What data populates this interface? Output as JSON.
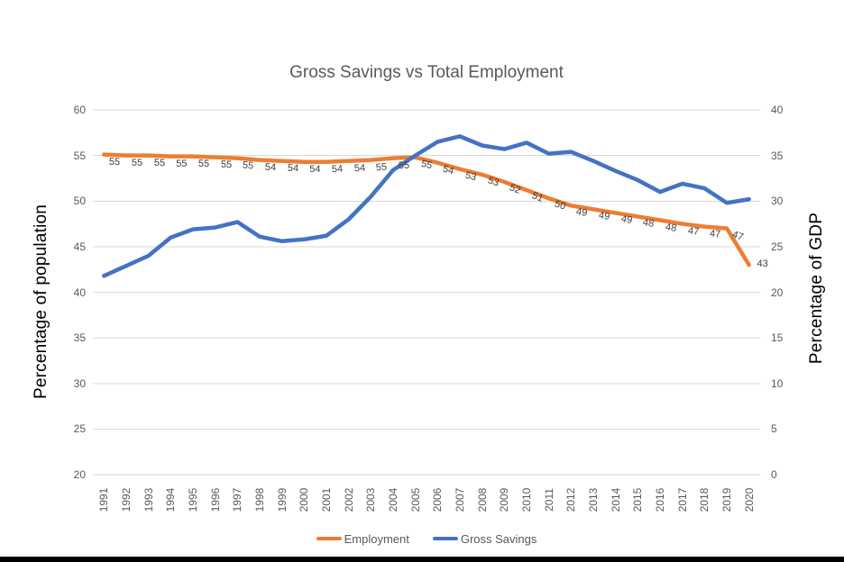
{
  "title": "Gross Savings vs Total Employment",
  "left_axis": {
    "title": "Percentage of population",
    "min": 20,
    "max": 60,
    "ticks": [
      60,
      55,
      50,
      45,
      40,
      35,
      30,
      25,
      20
    ]
  },
  "right_axis": {
    "title": "Percentage of GDP",
    "min": 0,
    "max": 40,
    "ticks": [
      40,
      35,
      30,
      25,
      20,
      15,
      10,
      5,
      0
    ]
  },
  "legend": [
    {
      "label": "Employment",
      "color": "#ED7D31"
    },
    {
      "label": "Gross Savings",
      "color": "#4472C4"
    }
  ],
  "colors": {
    "employment": "#ED7D31",
    "gross_savings": "#4472C4",
    "gridline": "#D9D9D9",
    "tick_text": "#595959",
    "title_text": "#595959",
    "data_label_text": "#404040",
    "axis_title_text": "#000000",
    "bottom_bar": "#000000"
  },
  "chart_data": {
    "type": "line",
    "title": "Gross Savings vs Total Employment",
    "x": [
      "1991",
      "1992",
      "1993",
      "1994",
      "1995",
      "1996",
      "1997",
      "1998",
      "1999",
      "2000",
      "2001",
      "2002",
      "2003",
      "2004",
      "2005",
      "2006",
      "2007",
      "2008",
      "2009",
      "2010",
      "2011",
      "2012",
      "2013",
      "2014",
      "2015",
      "2016",
      "2017",
      "2018",
      "2019",
      "2020"
    ],
    "xlabel": "",
    "left_ylabel": "Percentage of population",
    "right_ylabel": "Percentage of GDP",
    "left_ylim": [
      20,
      60
    ],
    "right_ylim": [
      0,
      40
    ],
    "grid": true,
    "legend_position": "bottom",
    "series": [
      {
        "name": "Employment",
        "axis": "left",
        "color": "#ED7D31",
        "values": [
          55.1,
          55.0,
          55.0,
          54.9,
          54.9,
          54.8,
          54.7,
          54.5,
          54.4,
          54.3,
          54.3,
          54.4,
          54.5,
          54.7,
          54.8,
          54.2,
          53.5,
          52.9,
          52.1,
          51.2,
          50.3,
          49.5,
          49.1,
          48.7,
          48.3,
          47.9,
          47.5,
          47.2,
          47.0,
          43.0
        ],
        "point_labels": [
          "55",
          "55",
          "55",
          "55",
          "55",
          "55",
          "55",
          "54",
          "54",
          "54",
          "54",
          "54",
          "55",
          "55",
          "55",
          "54",
          "53",
          "53",
          "52",
          "51",
          "50",
          "49",
          "49",
          "49",
          "48",
          "48",
          "47",
          "47",
          "47",
          "43"
        ]
      },
      {
        "name": "Gross Savings",
        "axis": "right",
        "color": "#4472C4",
        "values": [
          21.8,
          22.9,
          24.0,
          26.0,
          26.9,
          27.1,
          27.7,
          26.1,
          25.6,
          25.8,
          26.2,
          28.0,
          30.5,
          33.4,
          35.0,
          36.5,
          37.1,
          36.1,
          35.7,
          36.4,
          35.2,
          35.4,
          34.4,
          33.3,
          32.3,
          31.0,
          31.9,
          31.4,
          29.8,
          30.2
        ],
        "point_labels": []
      }
    ]
  }
}
